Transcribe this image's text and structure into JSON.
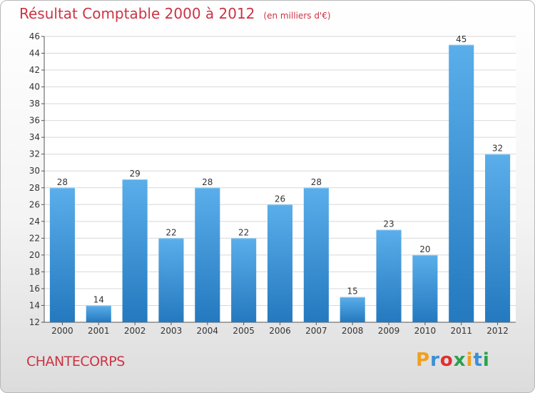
{
  "title": "Résultat Comptable 2000 à 2012",
  "unit_note": "(en milliers d'€)",
  "commune": "CHANTECORPS",
  "logo_text": "Proxiti",
  "colors": {
    "bar": "#3a8fd6",
    "title": "#cc3344",
    "grid": "#d8d8d8"
  },
  "chart_data": {
    "type": "bar",
    "title": "Résultat Comptable 2000 à 2012",
    "subtitle": "(en milliers d'€)",
    "categories": [
      "2000",
      "2001",
      "2002",
      "2003",
      "2004",
      "2005",
      "2006",
      "2007",
      "2008",
      "2009",
      "2010",
      "2011",
      "2012"
    ],
    "values": [
      28,
      14,
      29,
      22,
      28,
      22,
      26,
      28,
      15,
      23,
      20,
      45,
      32
    ],
    "ylim": [
      12,
      46
    ],
    "yticks": [
      12,
      14,
      16,
      18,
      20,
      22,
      24,
      26,
      28,
      30,
      32,
      34,
      36,
      38,
      40,
      42,
      44,
      46
    ],
    "grid": true,
    "data_labels": true
  }
}
